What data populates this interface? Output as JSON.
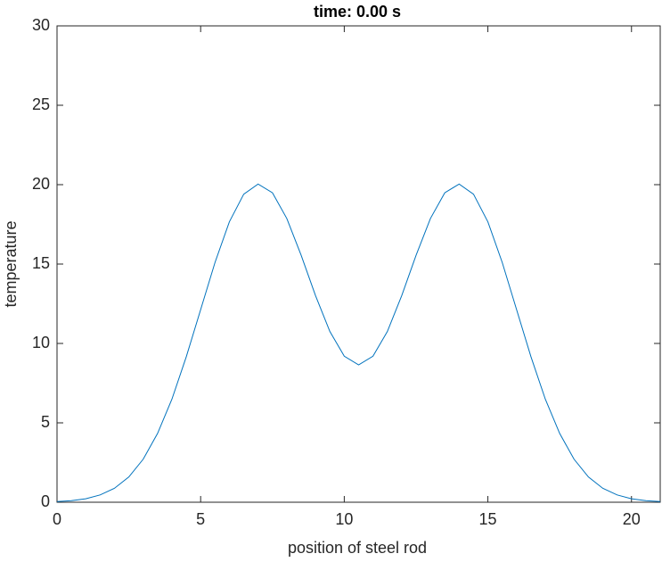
{
  "chart_data": {
    "type": "line",
    "title": "time: 0.00 s",
    "x_label": "position of steel rod",
    "y_label": "temperature",
    "x": [
      0,
      0.5,
      1,
      1.5,
      2,
      2.5,
      3,
      3.5,
      4,
      4.5,
      5,
      5.5,
      6,
      6.5,
      7,
      7.5,
      8,
      8.5,
      9,
      9.5,
      10,
      10.5,
      11,
      11.5,
      12,
      12.5,
      13,
      13.5,
      14,
      14.5,
      15,
      15.5,
      16,
      16.5,
      17,
      17.5,
      18,
      18.5,
      19,
      19.5,
      20,
      20.5,
      21
    ],
    "series": [
      {
        "color": "#0072bd",
        "values": [
          0.04,
          0.1,
          0.22,
          0.46,
          0.88,
          1.59,
          2.71,
          4.33,
          6.49,
          9.16,
          12.13,
          15.1,
          17.66,
          19.4,
          20.04,
          19.49,
          17.87,
          15.55,
          13.01,
          10.75,
          9.2,
          8.65,
          9.2,
          10.75,
          13.01,
          15.55,
          17.87,
          19.49,
          20.04,
          19.4,
          17.66,
          15.1,
          12.13,
          9.16,
          6.49,
          4.33,
          2.71,
          1.59,
          0.88,
          0.46,
          0.22,
          0.1,
          0.04
        ]
      }
    ],
    "xlim": [
      0,
      21
    ],
    "ylim": [
      0,
      30
    ],
    "xticks": [
      0,
      5,
      10,
      15,
      20
    ],
    "yticks": [
      0,
      5,
      10,
      15,
      20,
      25,
      30
    ]
  }
}
